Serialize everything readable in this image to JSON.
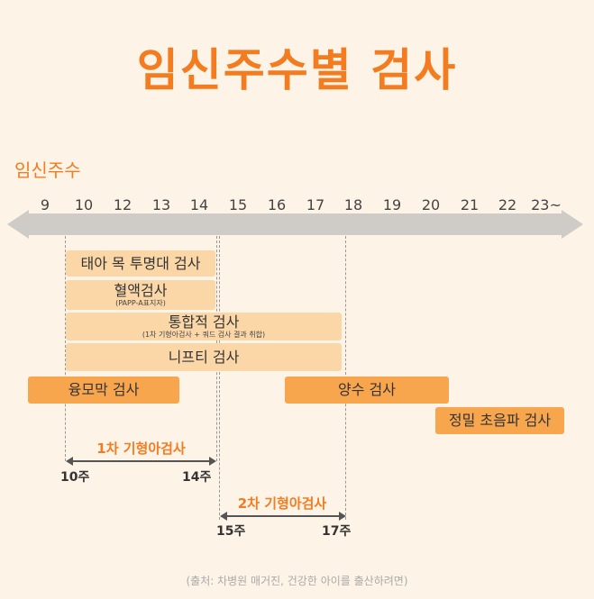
{
  "title": "임신주수별 검사",
  "axis_title": "임신주수",
  "weeks": [
    "9",
    "10",
    "12",
    "13",
    "14",
    "15",
    "16",
    "17",
    "18",
    "19",
    "20",
    "21",
    "22",
    "23~"
  ],
  "tests": [
    {
      "label": "태아 목 투명대 검사",
      "sub": ""
    },
    {
      "label": "혈액검사",
      "sub": "(PAPP-A표지자)"
    },
    {
      "label": "통합적 검사",
      "sub": "(1차 기형아검사 + 쿼드 검사 결과 취합)"
    },
    {
      "label": "니프티 검사",
      "sub": ""
    },
    {
      "label": "융모막 검사",
      "sub": ""
    },
    {
      "label": "양수 검사",
      "sub": ""
    },
    {
      "label": "정밀 초음파 검사",
      "sub": ""
    }
  ],
  "screening": [
    {
      "title": "1차 기형아검사",
      "start": "10주",
      "end": "14주"
    },
    {
      "title": "2차 기형아검사",
      "start": "15주",
      "end": "17주"
    }
  ],
  "source": "(출처: 차병원 매거진, 건강한 아이를 출산하려면)",
  "colors": {
    "accent": "#f47c20",
    "light_bar": "#fbd7a8",
    "dark_bar": "#f7a64d",
    "axis": "#cfcbc6"
  }
}
